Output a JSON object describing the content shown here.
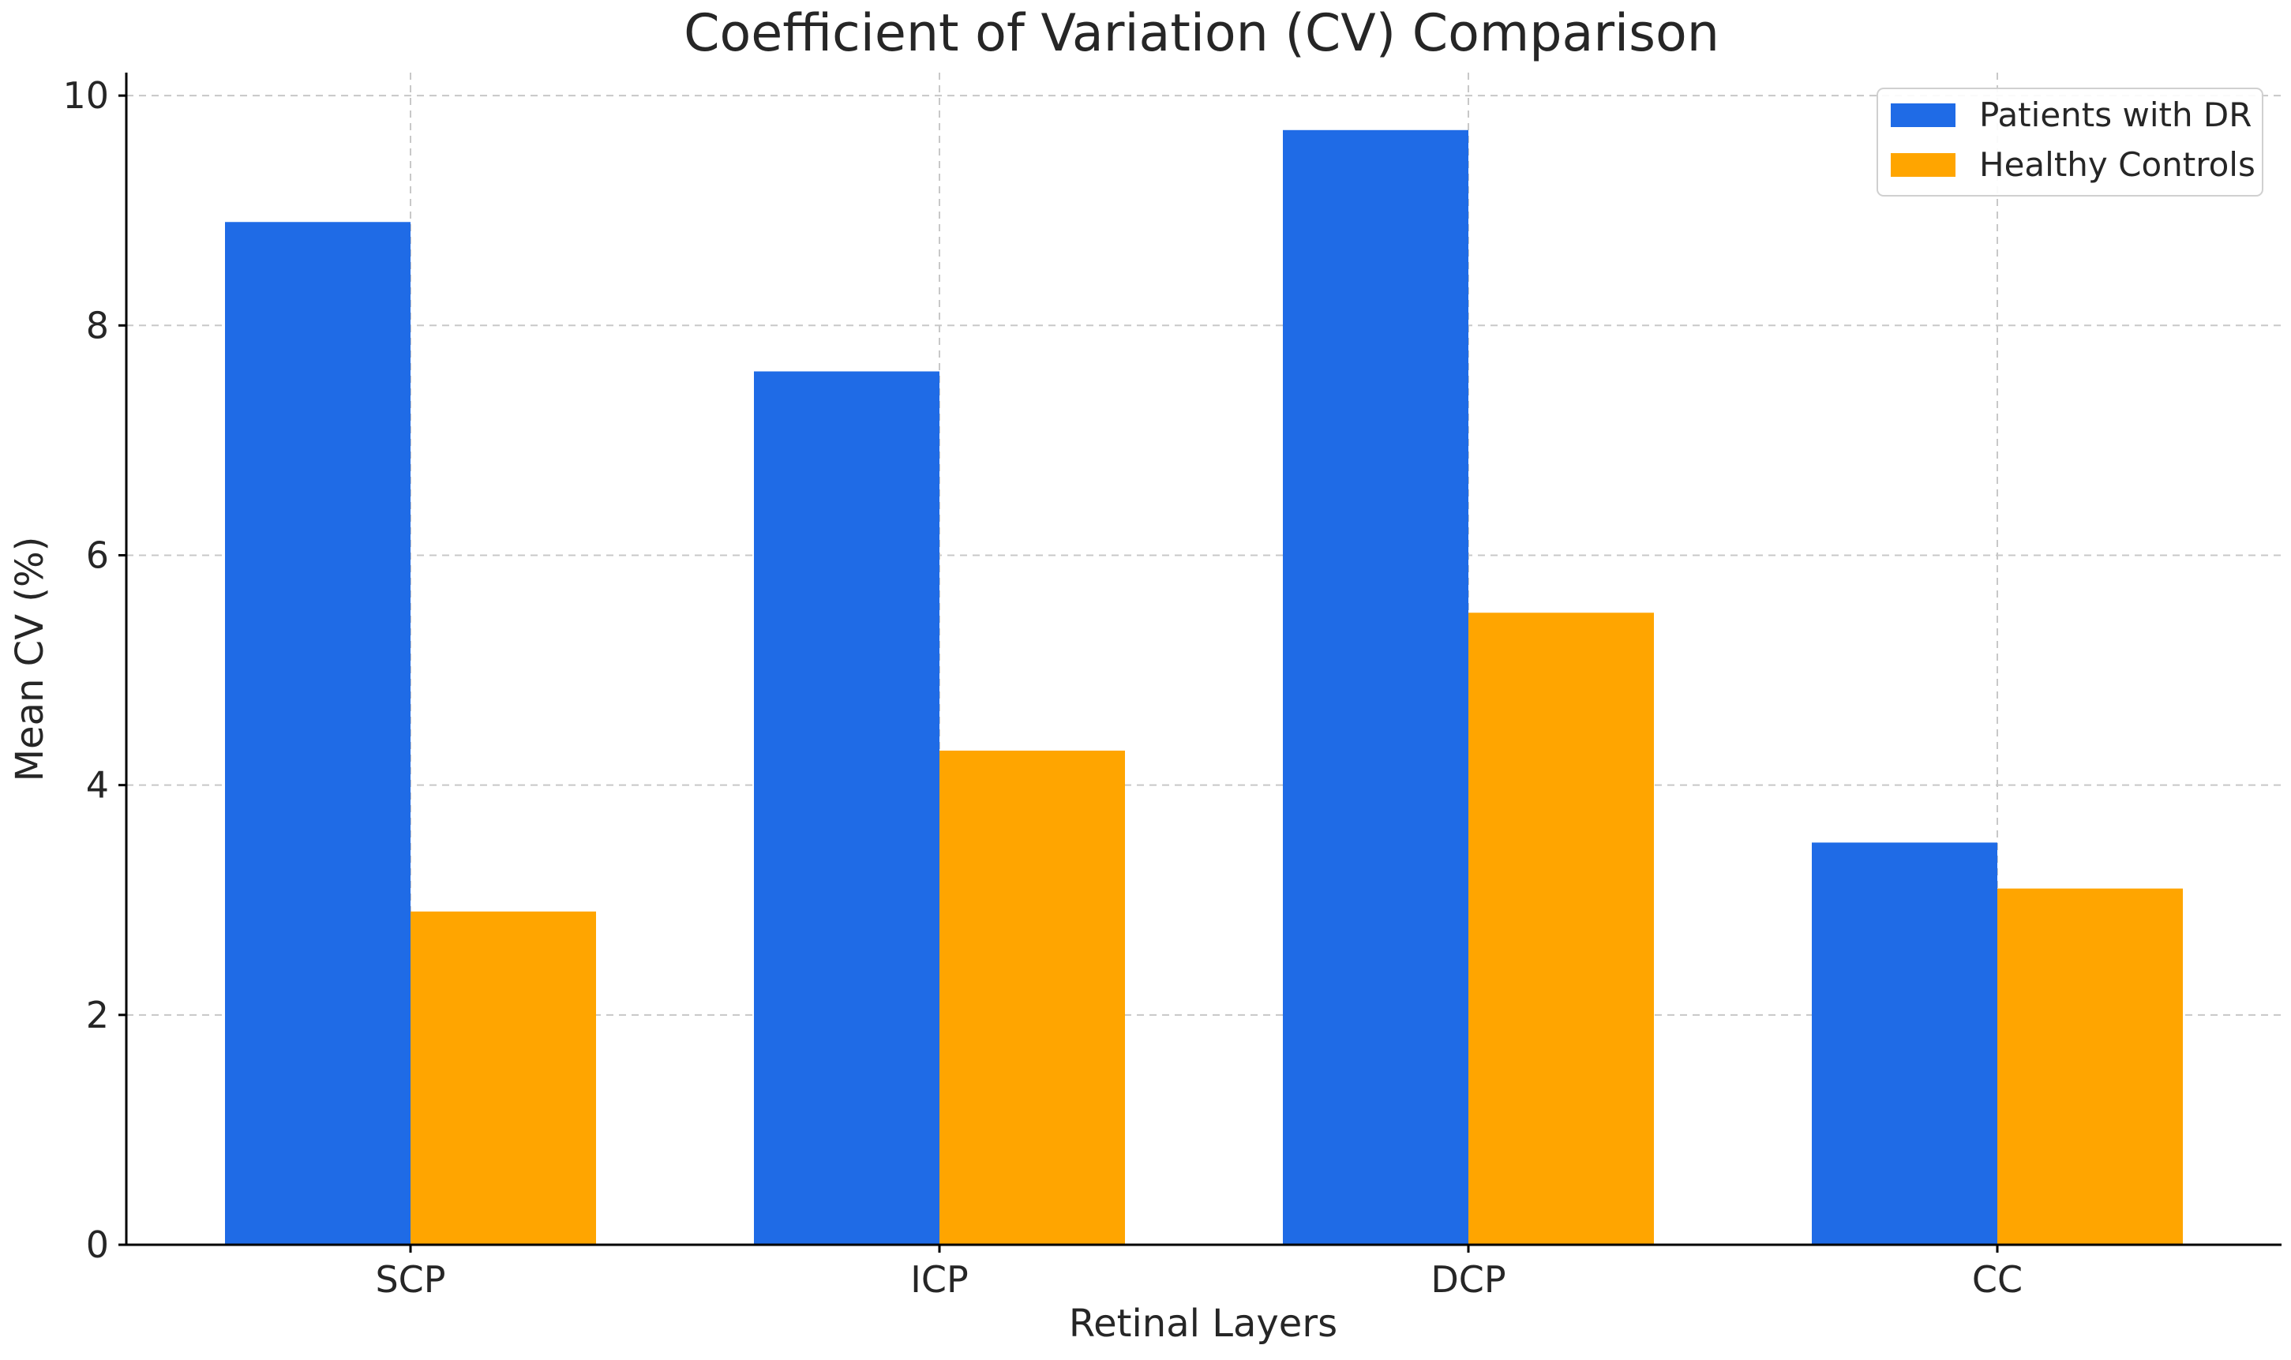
{
  "chart_data": {
    "type": "bar",
    "title": "Coefficient of Variation (CV) Comparison",
    "xlabel": "Retinal Layers",
    "ylabel": "Mean CV (%)",
    "categories": [
      "SCP",
      "ICP",
      "DCP",
      "CC"
    ],
    "series": [
      {
        "name": "Patients with DR",
        "color": "#1f6be6",
        "values": [
          8.9,
          7.6,
          9.7,
          3.5
        ]
      },
      {
        "name": "Healthy Controls",
        "color": "#ffa500",
        "values": [
          2.9,
          4.3,
          5.5,
          3.1
        ]
      }
    ],
    "ylim": [
      0,
      10.2
    ],
    "yticks": [
      0,
      2,
      4,
      6,
      8,
      10
    ],
    "grid": true,
    "legend_position": "top-right"
  }
}
